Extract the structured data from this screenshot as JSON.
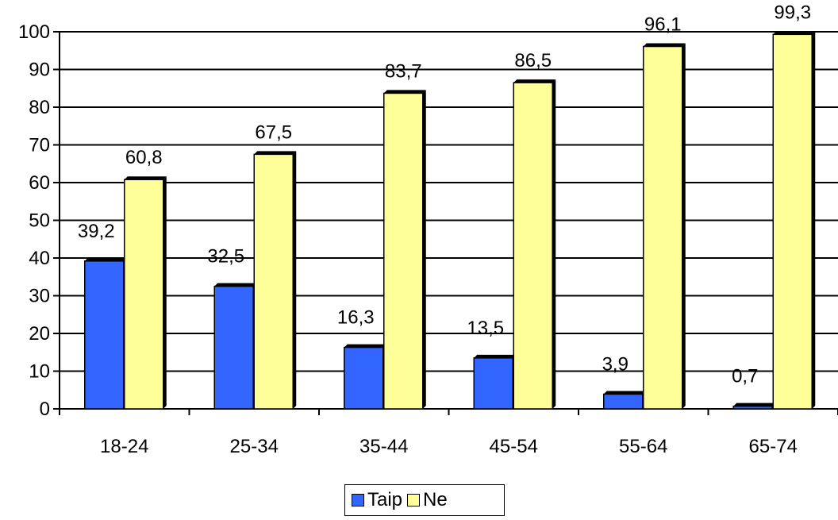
{
  "chart_data": {
    "type": "bar",
    "categories": [
      "18-24",
      "25-34",
      "35-44",
      "45-54",
      "55-64",
      "65-74"
    ],
    "series": [
      {
        "name": "Taip",
        "values": [
          39.2,
          32.5,
          16.3,
          13.5,
          3.9,
          0.7
        ],
        "labels": [
          "39,2",
          "32,5",
          "16,3",
          "13,5",
          "3,9",
          "0,7"
        ],
        "color": "#3366FF"
      },
      {
        "name": "Ne",
        "values": [
          60.8,
          67.5,
          83.7,
          86.5,
          96.1,
          99.3
        ],
        "labels": [
          "60,8",
          "67,5",
          "83,7",
          "86,5",
          "96,1",
          "99,3"
        ],
        "color": "#FFFF99"
      }
    ],
    "ylim": [
      0,
      100
    ],
    "yticks": [
      0,
      10,
      20,
      30,
      40,
      50,
      60,
      70,
      80,
      90,
      100
    ],
    "grid": true,
    "legend_position": "bottom"
  }
}
